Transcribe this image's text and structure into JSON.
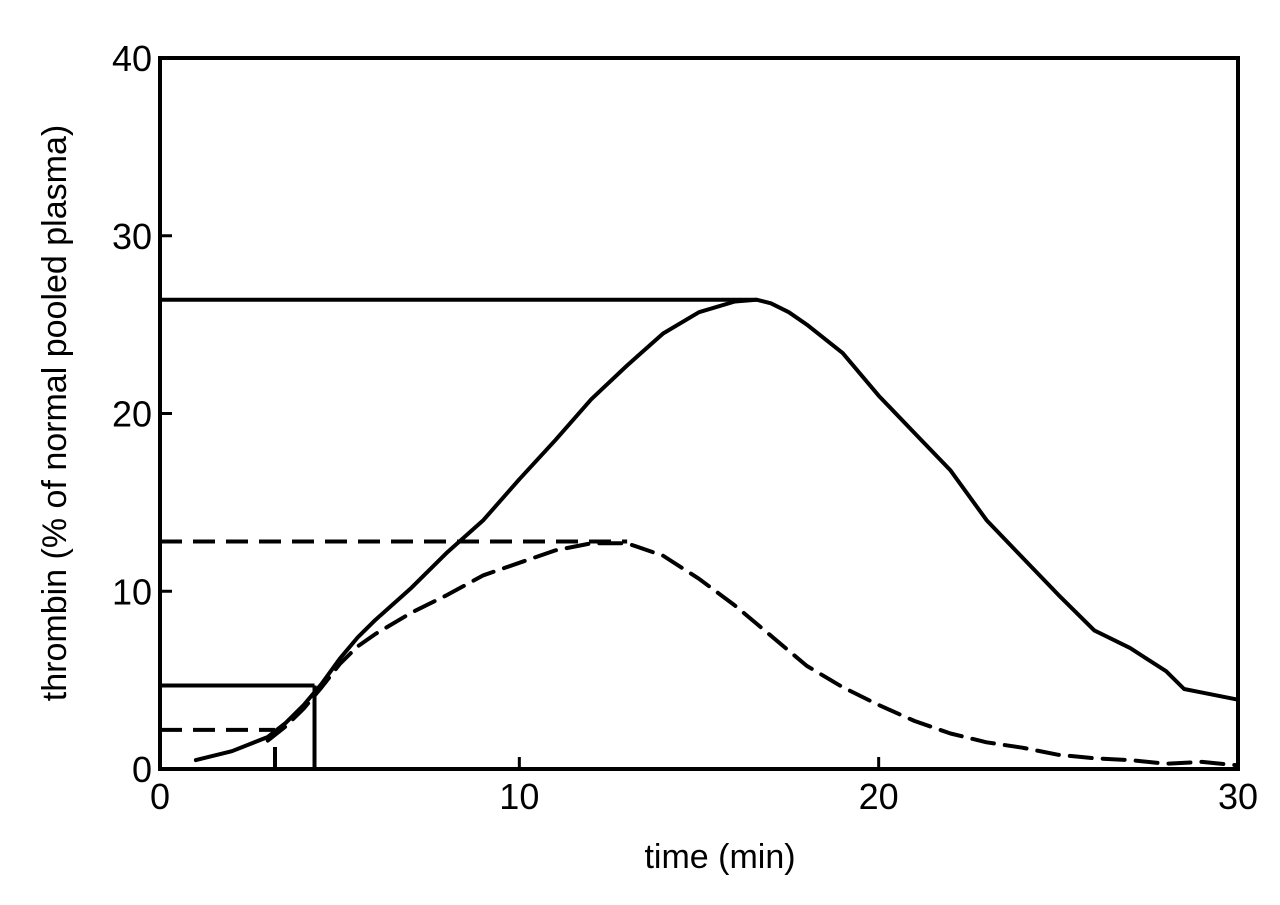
{
  "chart_data": {
    "type": "line",
    "title": "",
    "xlabel": "time (min)",
    "ylabel": "thrombin (% of normal pooled plasma)",
    "xlim": [
      0,
      30
    ],
    "ylim": [
      0,
      40
    ],
    "x_ticks": [
      0,
      10,
      20,
      30
    ],
    "y_ticks": [
      0,
      10,
      20,
      30,
      40
    ],
    "grid": false,
    "legend": "none",
    "series": [
      {
        "style": "solid",
        "color": "#000000",
        "x": [
          1.0,
          2.0,
          3.0,
          3.5,
          4.0,
          4.5,
          5.0,
          5.5,
          6.0,
          7.0,
          8.0,
          9.0,
          10.0,
          11.0,
          12.0,
          13.0,
          14.0,
          15.0,
          16.0,
          16.6,
          17.0,
          17.5,
          18.0,
          19.0,
          20.0,
          21.0,
          22.0,
          23.0,
          24.0,
          25.0,
          26.0,
          27.0,
          28.0,
          28.5,
          29.0,
          30.0
        ],
        "y": [
          0.5,
          1.0,
          1.8,
          2.6,
          3.6,
          4.8,
          6.2,
          7.4,
          8.4,
          10.2,
          12.2,
          14.0,
          16.3,
          18.5,
          20.8,
          22.7,
          24.5,
          25.7,
          26.3,
          26.4,
          26.2,
          25.7,
          25.0,
          23.4,
          21.0,
          18.9,
          16.8,
          14.0,
          11.9,
          9.8,
          7.8,
          6.8,
          5.5,
          4.5,
          4.3,
          3.9
        ]
      },
      {
        "style": "dashed",
        "color": "#000000",
        "x": [
          3.0,
          3.5,
          4.0,
          4.5,
          5.0,
          5.5,
          6.0,
          7.0,
          8.0,
          9.0,
          10.0,
          11.0,
          12.0,
          13.0,
          14.0,
          15.0,
          16.0,
          17.0,
          18.0,
          19.0,
          20.0,
          21.0,
          22.0,
          23.0,
          24.0,
          25.0,
          26.0,
          27.0,
          28.0,
          29.0,
          30.0
        ],
        "y": [
          1.6,
          2.4,
          3.4,
          4.6,
          5.9,
          6.9,
          7.6,
          8.8,
          9.8,
          10.9,
          11.6,
          12.3,
          12.7,
          12.7,
          12.0,
          10.7,
          9.2,
          7.5,
          5.8,
          4.6,
          3.6,
          2.7,
          2.0,
          1.5,
          1.2,
          0.8,
          0.6,
          0.5,
          0.3,
          0.4,
          0.2
        ]
      }
    ],
    "annotations": [
      {
        "type": "hline",
        "style": "solid",
        "y": 26.4,
        "x_from": 0,
        "x_to": 16.6
      },
      {
        "type": "hline",
        "style": "dashed",
        "y": 12.8,
        "x_from": 0,
        "x_to": 13.0
      },
      {
        "type": "hline",
        "style": "solid",
        "y": 4.7,
        "x_from": 0,
        "x_to": 4.3
      },
      {
        "type": "hline",
        "style": "dashed",
        "y": 2.2,
        "x_from": 0,
        "x_to": 3.2
      },
      {
        "type": "vline",
        "style": "solid",
        "x": 4.3,
        "y_from": 0,
        "y_to": 4.7
      },
      {
        "type": "vline",
        "style": "dashed",
        "x": 3.2,
        "y_from": 0,
        "y_to": 1.5
      }
    ]
  }
}
